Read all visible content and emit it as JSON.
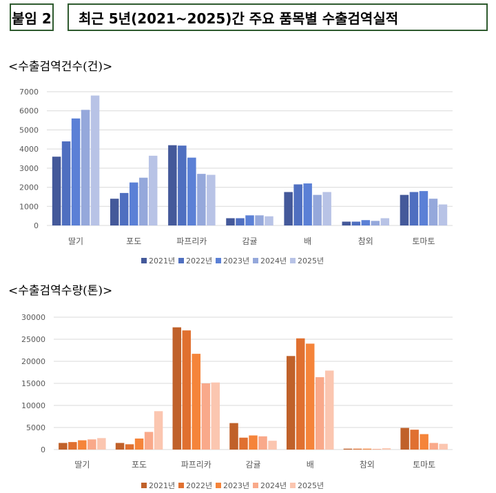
{
  "header": {
    "badge": "붙임 2",
    "title": "최근 5년(2021~2025)간 주요 품목별 수출검역실적"
  },
  "chart_data": [
    {
      "type": "bar",
      "title": "<수출검역건수(건)>",
      "categories": [
        "딸기",
        "포도",
        "파프리카",
        "감귤",
        "배",
        "참외",
        "토마토"
      ],
      "ylim": [
        0,
        7000
      ],
      "yticks": [
        0,
        1000,
        2000,
        3000,
        4000,
        5000,
        6000,
        7000
      ],
      "grid": true,
      "legend": "bottom",
      "colors": [
        "#44599a",
        "#4f6fc0",
        "#5b80d6",
        "#95a8db",
        "#b8c3e6"
      ],
      "series": [
        {
          "name": "2021년",
          "values": [
            3600,
            1400,
            4200,
            380,
            1750,
            200,
            1600
          ]
        },
        {
          "name": "2022년",
          "values": [
            4400,
            1700,
            4180,
            380,
            2150,
            200,
            1750
          ]
        },
        {
          "name": "2023년",
          "values": [
            5600,
            2250,
            3550,
            530,
            2200,
            280,
            1800
          ]
        },
        {
          "name": "2024년",
          "values": [
            6050,
            2500,
            2700,
            530,
            1600,
            240,
            1400
          ]
        },
        {
          "name": "2025년",
          "values": [
            6800,
            3650,
            2650,
            480,
            1750,
            380,
            1100
          ]
        }
      ]
    },
    {
      "type": "bar",
      "title": "<수출검역수량(톤)>",
      "categories": [
        "딸기",
        "포도",
        "파프리카",
        "감귤",
        "배",
        "참외",
        "토마토"
      ],
      "ylim": [
        0,
        30000
      ],
      "yticks": [
        0,
        5000,
        10000,
        15000,
        20000,
        25000,
        30000
      ],
      "grid": true,
      "legend": "bottom",
      "colors": [
        "#c0612a",
        "#e07030",
        "#f5843a",
        "#f9a98a",
        "#fbc6b0"
      ],
      "series": [
        {
          "name": "2021년",
          "values": [
            1500,
            1500,
            27700,
            6000,
            21200,
            200,
            4900
          ]
        },
        {
          "name": "2022년",
          "values": [
            1700,
            1200,
            27000,
            2700,
            25200,
            200,
            4500
          ]
        },
        {
          "name": "2023년",
          "values": [
            2100,
            2500,
            21700,
            3200,
            24000,
            200,
            3500
          ]
        },
        {
          "name": "2024년",
          "values": [
            2300,
            4000,
            15000,
            3000,
            16400,
            150,
            1500
          ]
        },
        {
          "name": "2025년",
          "values": [
            2600,
            8700,
            15200,
            2000,
            17900,
            300,
            1300
          ]
        }
      ]
    }
  ]
}
